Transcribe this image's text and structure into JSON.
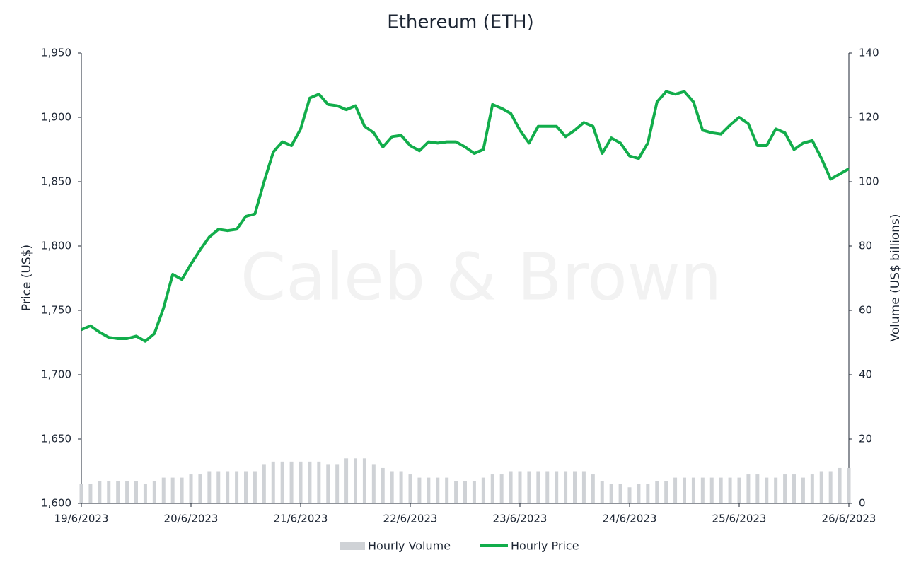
{
  "chart_data": {
    "type": "line-bar",
    "title": "Ethereum (ETH)",
    "watermark": "Caleb & Brown",
    "y_label": "Price (US$)",
    "y2_label": "Volume (US$ billions)",
    "categories": [
      "19/6/2023",
      null,
      null,
      null,
      null,
      null,
      null,
      null,
      null,
      null,
      null,
      null,
      "20/6/2023",
      null,
      null,
      null,
      null,
      null,
      null,
      null,
      null,
      null,
      null,
      null,
      "21/6/2023",
      null,
      null,
      null,
      null,
      null,
      null,
      null,
      null,
      null,
      null,
      null,
      "22/6/2023",
      null,
      null,
      null,
      null,
      null,
      null,
      null,
      null,
      null,
      null,
      null,
      "23/6/2023",
      null,
      null,
      null,
      null,
      null,
      null,
      null,
      null,
      null,
      null,
      null,
      "24/6/2023",
      null,
      null,
      null,
      null,
      null,
      null,
      null,
      null,
      null,
      null,
      null,
      "25/6/2023",
      null,
      null,
      null,
      null,
      null,
      null,
      null,
      null,
      null,
      null,
      null,
      "26/6/2023"
    ],
    "series": [
      {
        "name": "Hourly Volume",
        "kind": "bar",
        "axis": "y2",
        "color": "#cfd2d6",
        "values": [
          6,
          6,
          7,
          7,
          7,
          7,
          7,
          6,
          7,
          8,
          8,
          8,
          9,
          9,
          10,
          10,
          10,
          10,
          10,
          10,
          12,
          13,
          13,
          13,
          13,
          13,
          13,
          12,
          12,
          14,
          14,
          14,
          12,
          11,
          10,
          10,
          9,
          8,
          8,
          8,
          8,
          7,
          7,
          7,
          8,
          9,
          9,
          10,
          10,
          10,
          10,
          10,
          10,
          10,
          10,
          10,
          9,
          7,
          6,
          6,
          5,
          6,
          6,
          7,
          7,
          8,
          8,
          8,
          8,
          8,
          8,
          8,
          8,
          9,
          9,
          8,
          8,
          9,
          9,
          8,
          9,
          10,
          10,
          11,
          11
        ]
      },
      {
        "name": "Hourly Price",
        "kind": "line",
        "color": "#12ad4b",
        "values": [
          1735,
          1738,
          1733,
          1729,
          1728,
          1728,
          1730,
          1726,
          1732,
          1752,
          1778,
          1774,
          1786,
          1797,
          1807,
          1813,
          1812,
          1813,
          1823,
          1825,
          1850,
          1873,
          1881,
          1878,
          1891,
          1915,
          1918,
          1910,
          1909,
          1906,
          1909,
          1893,
          1888,
          1877,
          1885,
          1886,
          1878,
          1874,
          1881,
          1880,
          1881,
          1881,
          1877,
          1872,
          1875,
          1910,
          1907,
          1903,
          1890,
          1880,
          1893,
          1893,
          1893,
          1885,
          1890,
          1896,
          1893,
          1872,
          1884,
          1880,
          1870,
          1868,
          1880,
          1912,
          1920,
          1918,
          1920,
          1912,
          1890,
          1888,
          1887,
          1894,
          1900,
          1895,
          1878,
          1878,
          1891,
          1888,
          1875,
          1880,
          1882,
          1868,
          1852,
          1856,
          1860
        ]
      }
    ],
    "ylim": [
      1600,
      1950
    ],
    "yticks": [
      {
        "value": 1600,
        "label": "1,600"
      },
      {
        "value": 1650,
        "label": "1,650"
      },
      {
        "value": 1700,
        "label": "1,700"
      },
      {
        "value": 1750,
        "label": "1,750"
      },
      {
        "value": 1800,
        "label": "1,800"
      },
      {
        "value": 1850,
        "label": "1,850"
      },
      {
        "value": 1900,
        "label": "1,900"
      },
      {
        "value": 1950,
        "label": "1,950"
      }
    ],
    "y2lim": [
      0,
      140
    ],
    "y2ticks": [
      0,
      20,
      40,
      60,
      80,
      100,
      120,
      140
    ],
    "legend": "bottom"
  }
}
